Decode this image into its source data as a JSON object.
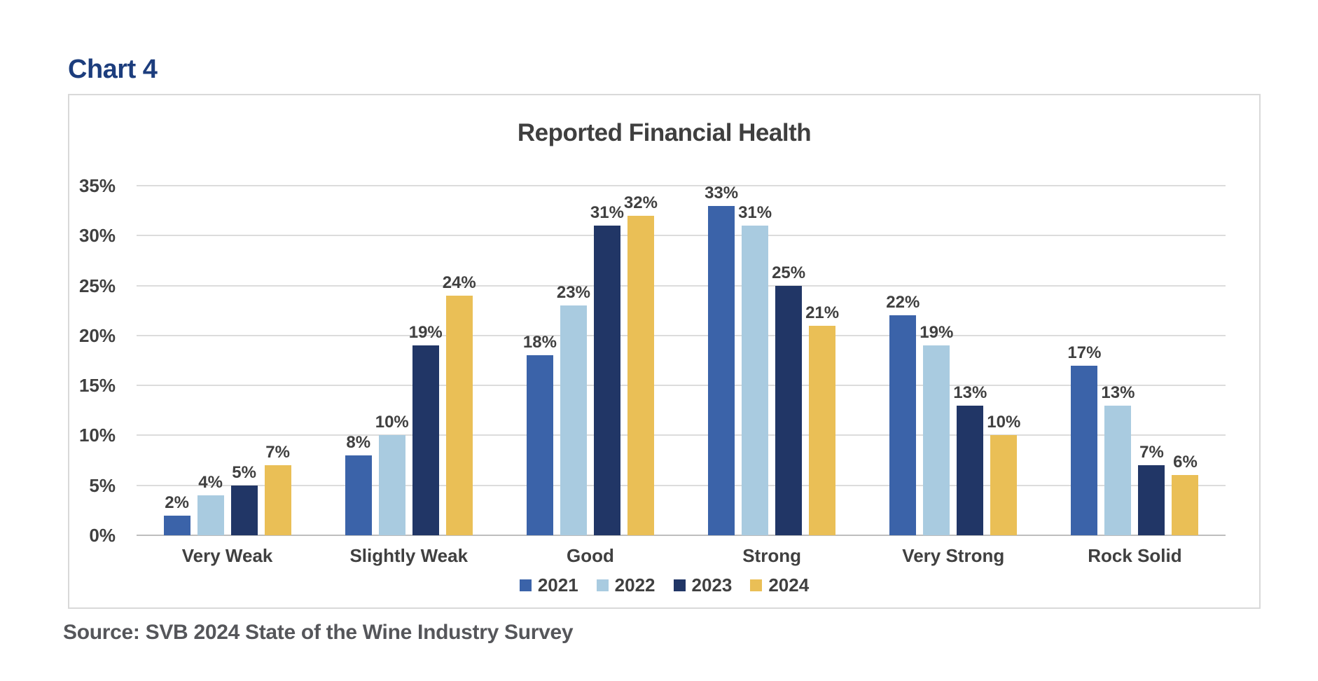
{
  "page": {
    "chart_label": "Chart 4",
    "source": "Source: SVB 2024 State of the Wine Industry Survey"
  },
  "chart_data": {
    "type": "bar",
    "title": "Reported Financial Health",
    "categories": [
      "Very Weak",
      "Slightly Weak",
      "Good",
      "Strong",
      "Very Strong",
      "Rock Solid"
    ],
    "series": [
      {
        "name": "2021",
        "color": "#3B63A9",
        "values": [
          2,
          8,
          18,
          33,
          22,
          17
        ]
      },
      {
        "name": "2022",
        "color": "#A9CBE0",
        "values": [
          4,
          10,
          23,
          31,
          19,
          13
        ]
      },
      {
        "name": "2023",
        "color": "#213666",
        "values": [
          5,
          19,
          31,
          25,
          13,
          7
        ]
      },
      {
        "name": "2024",
        "color": "#EABF56",
        "values": [
          7,
          24,
          32,
          21,
          10,
          6
        ]
      }
    ],
    "unit": "%",
    "xlabel": "",
    "ylabel": "",
    "ylim": [
      0,
      35
    ],
    "ytick_step": 5,
    "ytick_labels": [
      "0%",
      "5%",
      "10%",
      "15%",
      "20%",
      "25%",
      "30%",
      "35%"
    ],
    "grid": true,
    "value_labels": true,
    "legend_position": "bottom"
  },
  "colors": {
    "heading": "#1C3D7D",
    "text": "#404040",
    "source_text": "#55565A",
    "grid": "#DCDCDC",
    "axis_line": "#BEBEBE",
    "panel_border": "#D9D9D9",
    "background": "#FFFFFF"
  }
}
